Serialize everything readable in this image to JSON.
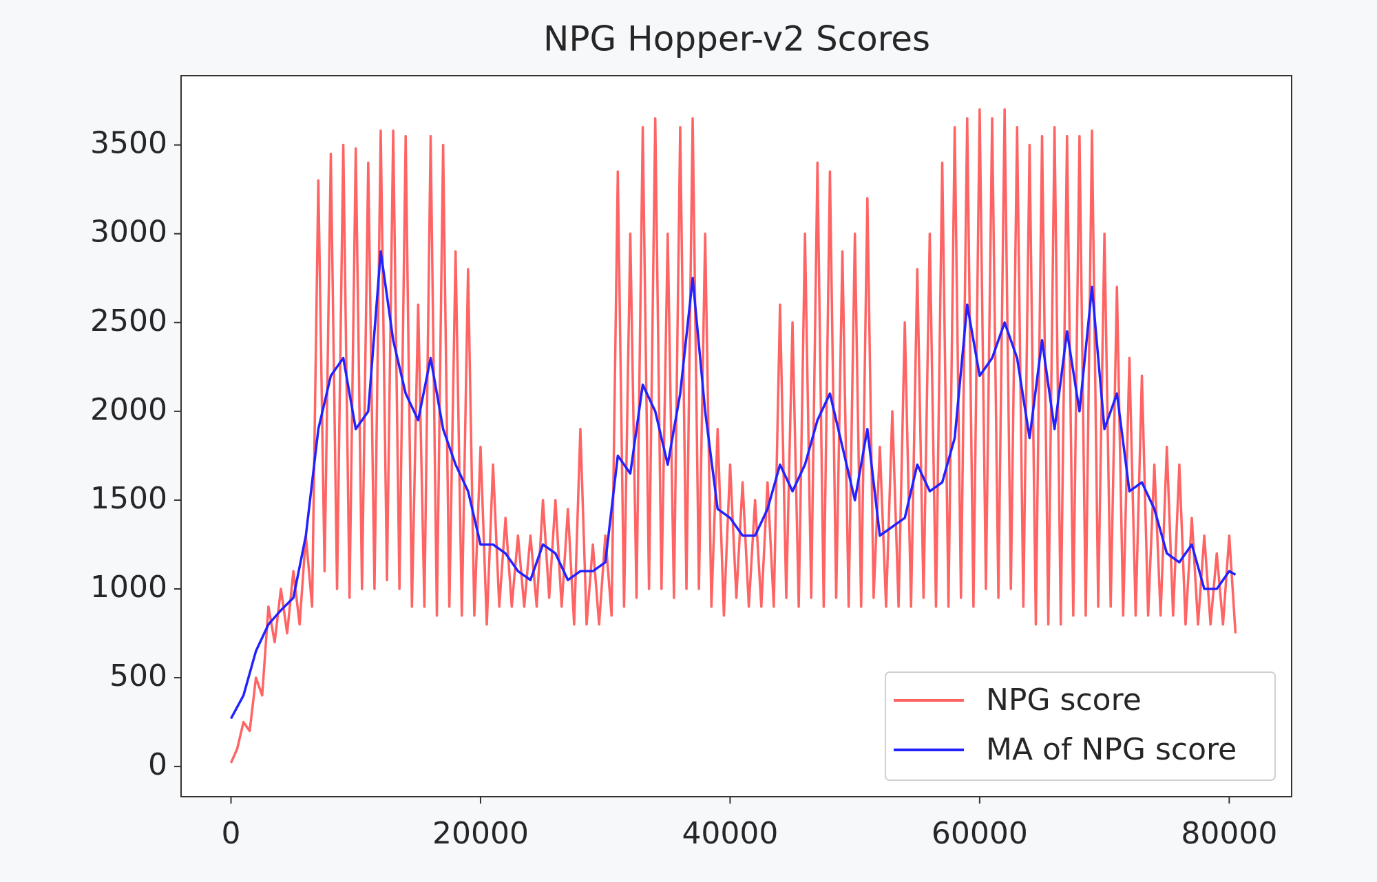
{
  "chart_data": {
    "type": "line",
    "title": "NPG Hopper-v2 Scores",
    "xlim": [
      -4000,
      85000
    ],
    "ylim": [
      -170,
      3890
    ],
    "xticks": [
      0,
      20000,
      40000,
      60000,
      80000
    ],
    "yticks": [
      0,
      500,
      1000,
      1500,
      2000,
      2500,
      3000,
      3500
    ],
    "legend": "lower right",
    "series": [
      {
        "name": "NPG score",
        "color": "#ff6464",
        "x": [
          0,
          500,
          1000,
          1500,
          2000,
          2500,
          3000,
          3500,
          4000,
          4500,
          5000,
          5500,
          6000,
          6500,
          7000,
          7500,
          8000,
          8500,
          9000,
          9500,
          10000,
          10500,
          11000,
          11500,
          12000,
          12500,
          13000,
          13500,
          14000,
          14500,
          15000,
          15500,
          16000,
          16500,
          17000,
          17500,
          18000,
          18500,
          19000,
          19500,
          20000,
          20500,
          21000,
          21500,
          22000,
          22500,
          23000,
          23500,
          24000,
          24500,
          25000,
          25500,
          26000,
          26500,
          27000,
          27500,
          28000,
          28500,
          29000,
          29500,
          30000,
          30500,
          31000,
          31500,
          32000,
          32500,
          33000,
          33500,
          34000,
          34500,
          35000,
          35500,
          36000,
          36500,
          37000,
          37500,
          38000,
          38500,
          39000,
          39500,
          40000,
          40500,
          41000,
          41500,
          42000,
          42500,
          43000,
          43500,
          44000,
          44500,
          45000,
          45500,
          46000,
          46500,
          47000,
          47500,
          48000,
          48500,
          49000,
          49500,
          50000,
          50500,
          51000,
          51500,
          52000,
          52500,
          53000,
          53500,
          54000,
          54500,
          55000,
          55500,
          56000,
          56500,
          57000,
          57500,
          58000,
          58500,
          59000,
          59500,
          60000,
          60500,
          61000,
          61500,
          62000,
          62500,
          63000,
          63500,
          64000,
          64500,
          65000,
          65500,
          66000,
          66500,
          67000,
          67500,
          68000,
          68500,
          69000,
          69500,
          70000,
          70500,
          71000,
          71500,
          72000,
          72500,
          73000,
          73500,
          74000,
          74500,
          75000,
          75500,
          76000,
          76500,
          77000,
          77500,
          78000,
          78500,
          79000,
          79500,
          80000,
          80500
        ],
        "values": [
          20,
          100,
          250,
          200,
          500,
          400,
          900,
          700,
          1000,
          750,
          1100,
          800,
          1300,
          900,
          3300,
          1100,
          3450,
          1000,
          3500,
          950,
          3480,
          1000,
          3400,
          1000,
          3580,
          1050,
          3580,
          1000,
          3550,
          900,
          2600,
          900,
          3550,
          850,
          3500,
          900,
          2900,
          850,
          2800,
          850,
          1800,
          800,
          1700,
          900,
          1400,
          900,
          1300,
          900,
          1300,
          900,
          1500,
          950,
          1500,
          900,
          1450,
          800,
          1900,
          800,
          1250,
          800,
          1300,
          850,
          3350,
          900,
          3000,
          950,
          3600,
          1000,
          3650,
          1000,
          3000,
          950,
          3600,
          1000,
          3650,
          1000,
          3000,
          900,
          1900,
          850,
          1700,
          950,
          1600,
          900,
          1500,
          900,
          1600,
          900,
          2600,
          950,
          2500,
          900,
          3000,
          950,
          3400,
          900,
          3350,
          950,
          2900,
          900,
          3000,
          900,
          3200,
          950,
          1800,
          900,
          2000,
          900,
          2500,
          900,
          2800,
          950,
          3000,
          900,
          3400,
          900,
          3600,
          950,
          3650,
          900,
          3700,
          1000,
          3650,
          950,
          3700,
          1000,
          3600,
          900,
          3500,
          800,
          3550,
          800,
          3600,
          800,
          3550,
          850,
          3550,
          850,
          3580,
          900,
          3000,
          900,
          2700,
          850,
          2300,
          850,
          2200,
          850,
          1700,
          850,
          1800,
          850,
          1700,
          800,
          1400,
          800,
          1300,
          800,
          1200,
          800,
          1300,
          750
        ]
      },
      {
        "name": "MA of NPG score",
        "color": "#2222ff",
        "x": [
          0,
          1000,
          2000,
          3000,
          4000,
          5000,
          6000,
          7000,
          8000,
          9000,
          10000,
          11000,
          12000,
          13000,
          14000,
          15000,
          16000,
          17000,
          18000,
          19000,
          20000,
          21000,
          22000,
          23000,
          24000,
          25000,
          26000,
          27000,
          28000,
          29000,
          30000,
          31000,
          32000,
          33000,
          34000,
          35000,
          36000,
          37000,
          38000,
          39000,
          40000,
          41000,
          42000,
          43000,
          44000,
          45000,
          46000,
          47000,
          48000,
          49000,
          50000,
          51000,
          52000,
          53000,
          54000,
          55000,
          56000,
          57000,
          58000,
          59000,
          60000,
          61000,
          62000,
          63000,
          64000,
          65000,
          66000,
          67000,
          68000,
          69000,
          70000,
          71000,
          72000,
          73000,
          74000,
          75000,
          76000,
          77000,
          78000,
          79000,
          80000,
          80500
        ],
        "values": [
          270,
          400,
          650,
          800,
          880,
          950,
          1300,
          1900,
          2200,
          2300,
          1900,
          2000,
          2900,
          2400,
          2100,
          1950,
          2300,
          1900,
          1700,
          1550,
          1250,
          1250,
          1200,
          1100,
          1050,
          1250,
          1200,
          1050,
          1100,
          1100,
          1150,
          1750,
          1650,
          2150,
          2000,
          1700,
          2100,
          2750,
          2000,
          1450,
          1400,
          1300,
          1300,
          1450,
          1700,
          1550,
          1700,
          1950,
          2100,
          1800,
          1500,
          1900,
          1300,
          1350,
          1400,
          1700,
          1550,
          1600,
          1850,
          2600,
          2200,
          2300,
          2500,
          2300,
          1850,
          2400,
          1900,
          2450,
          2000,
          2700,
          1900,
          2100,
          1550,
          1600,
          1450,
          1200,
          1150,
          1250,
          1000,
          1000,
          1100,
          1080
        ]
      }
    ]
  }
}
